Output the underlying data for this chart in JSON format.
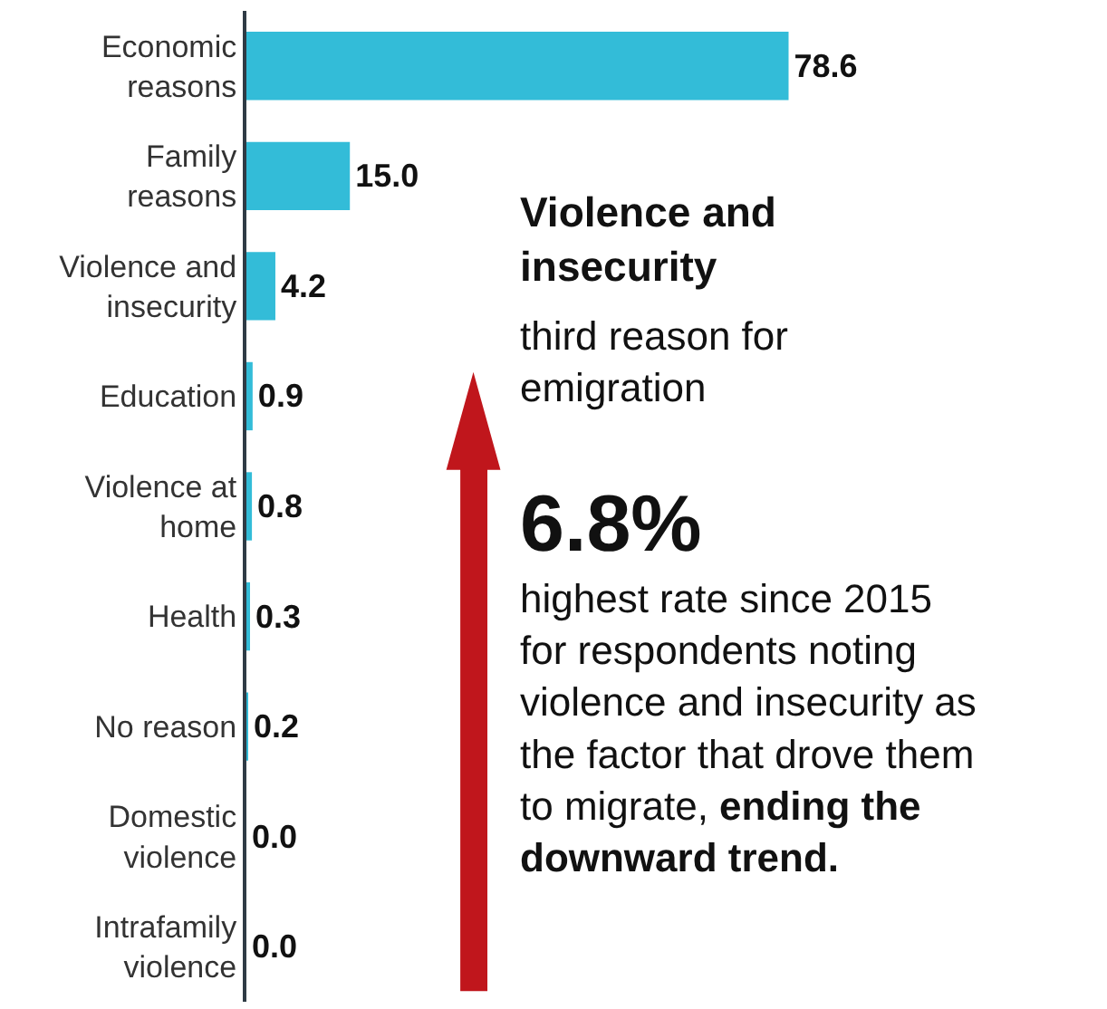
{
  "chart_data": {
    "type": "bar",
    "orientation": "horizontal",
    "categories": [
      "Economic reasons",
      "Family reasons",
      "Violence and insecurity",
      "Education",
      "Violence at home",
      "Health",
      "No reason",
      "Domestic violence",
      "Intrafamily violence"
    ],
    "values": [
      78.6,
      15.0,
      4.2,
      0.9,
      0.8,
      0.3,
      0.2,
      0.0,
      0.0
    ],
    "value_labels": [
      "78.6",
      "15.0",
      "4.2",
      "0.9",
      "0.8",
      "0.3",
      "0.2",
      "0.0",
      "0.0"
    ],
    "color": "#33bcd8",
    "tick_labels": "y",
    "annotations": [
      "Violence and insecurity",
      "third reason for emigration",
      "6.8%",
      "highest rate since 2015 for respondents noting violence and insecurity as the factor that drove them to migrate,",
      "ending the downward trend."
    ]
  }
}
